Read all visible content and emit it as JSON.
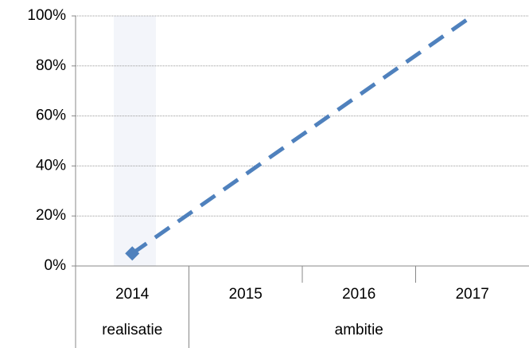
{
  "chart_data": {
    "type": "line",
    "categories": [
      "2014",
      "2015",
      "2016",
      "2017"
    ],
    "group_labels": [
      "realisatie",
      "ambitie"
    ],
    "series": [
      {
        "color": "#4f81bd",
        "values": [
          5,
          36.67,
          68.33,
          100
        ]
      }
    ],
    "ylim": [
      0,
      100
    ],
    "yticks": [
      {
        "value": 0,
        "label": "0%"
      },
      {
        "value": 20,
        "label": "20%"
      },
      {
        "value": 40,
        "label": "40%"
      },
      {
        "value": 60,
        "label": "60%"
      },
      {
        "value": 80,
        "label": "80%"
      },
      {
        "value": 100,
        "label": "100%"
      }
    ],
    "grid": true
  }
}
